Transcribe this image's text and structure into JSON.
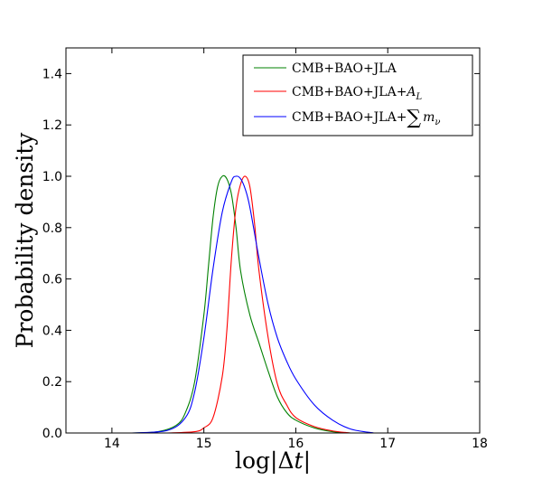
{
  "chart_data": {
    "type": "line",
    "xlabel": "log|Δt|",
    "ylabel": "Probability density",
    "xlim": [
      13.5,
      18
    ],
    "ylim": [
      0,
      1.5
    ],
    "xticks": [
      14,
      15,
      16,
      17,
      18
    ],
    "yticks": [
      0.0,
      0.2,
      0.4,
      0.6,
      0.8,
      1.0,
      1.2,
      1.4
    ],
    "xtick_labels": [
      "14",
      "15",
      "16",
      "17",
      "18"
    ],
    "ytick_labels": [
      "0.0",
      "0.2",
      "0.4",
      "0.6",
      "0.8",
      "1.0",
      "1.2",
      "1.4"
    ],
    "grid": false,
    "legend_position": "top-right",
    "series": [
      {
        "name": "CMB+BAO+JLA",
        "color": "#008000",
        "x": [
          14.2,
          14.5,
          14.7,
          14.8,
          14.9,
          15.0,
          15.05,
          15.1,
          15.15,
          15.2,
          15.25,
          15.3,
          15.35,
          15.4,
          15.5,
          15.6,
          15.7,
          15.8,
          15.9,
          16.0,
          16.2,
          16.4,
          16.6
        ],
        "y": [
          0.0,
          0.005,
          0.03,
          0.08,
          0.2,
          0.46,
          0.65,
          0.84,
          0.96,
          1.0,
          0.99,
          0.93,
          0.8,
          0.63,
          0.46,
          0.35,
          0.24,
          0.14,
          0.08,
          0.05,
          0.02,
          0.005,
          0.0
        ]
      },
      {
        "name": "CMB+BAO+JLA+A_L",
        "color": "#ff0000",
        "x": [
          14.6,
          14.9,
          15.0,
          15.1,
          15.2,
          15.25,
          15.3,
          15.35,
          15.4,
          15.45,
          15.5,
          15.55,
          15.6,
          15.7,
          15.8,
          15.9,
          16.0,
          16.2,
          16.4,
          16.6
        ],
        "y": [
          0.0,
          0.005,
          0.02,
          0.06,
          0.22,
          0.4,
          0.68,
          0.88,
          0.97,
          1.0,
          0.96,
          0.82,
          0.63,
          0.37,
          0.19,
          0.11,
          0.06,
          0.025,
          0.008,
          0.0
        ]
      },
      {
        "name": "CMB+BAO+JLA+∑m_ν",
        "color": "#0000ff",
        "x": [
          14.2,
          14.6,
          14.8,
          14.9,
          15.0,
          15.1,
          15.2,
          15.3,
          15.35,
          15.4,
          15.45,
          15.5,
          15.6,
          15.7,
          15.8,
          15.9,
          16.0,
          16.2,
          16.4,
          16.6,
          16.85
        ],
        "y": [
          0.0,
          0.01,
          0.06,
          0.16,
          0.37,
          0.64,
          0.86,
          0.98,
          1.0,
          0.99,
          0.95,
          0.88,
          0.68,
          0.5,
          0.37,
          0.28,
          0.21,
          0.11,
          0.05,
          0.015,
          0.0
        ]
      }
    ]
  },
  "legend": {
    "labels": [
      "CMB+BAO+JLA",
      "CMB+BAO+JLA+",
      "CMB+BAO+JLA+"
    ],
    "al_symbol": "A",
    "al_subscript": "L",
    "sum_symbol": "∑",
    "m_symbol": "m",
    "nu_subscript": "ν"
  },
  "axis_text": {
    "ylabel": "Probability density",
    "xlabel_pre": "log|",
    "xlabel_delta": "Δ",
    "xlabel_t": "t",
    "xlabel_post": "|"
  }
}
